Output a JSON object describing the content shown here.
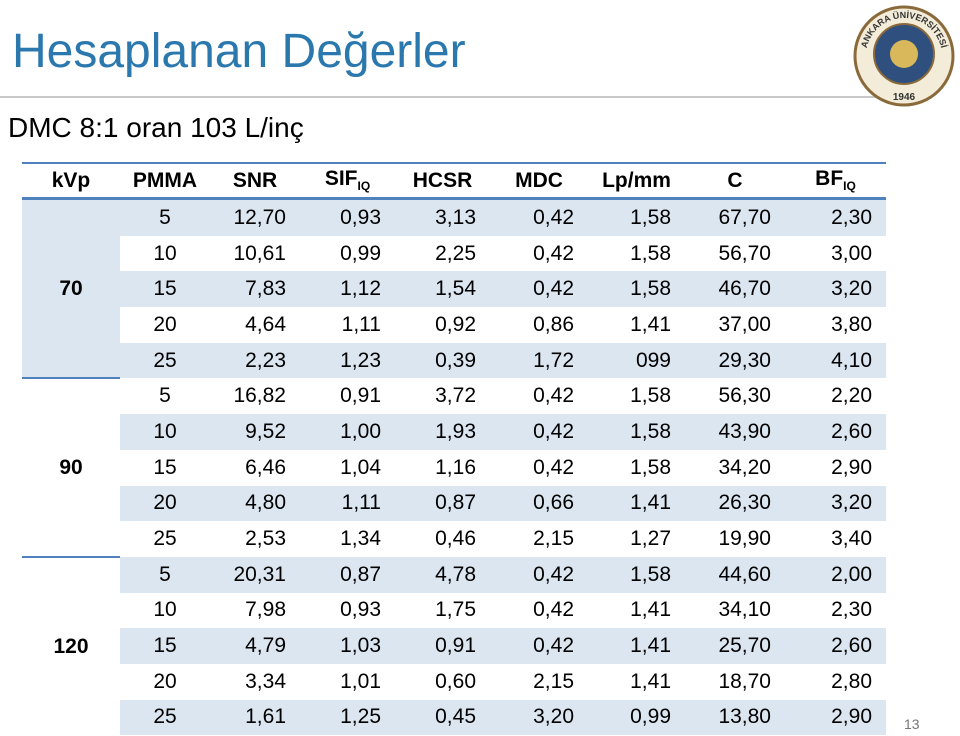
{
  "header": {
    "title": "Hesaplanan Değerler",
    "subtitle": "DMC 8:1 oran 103 L/inç"
  },
  "logo": {
    "name": "ANKARA ÜNİVERSİTESİ",
    "year": "1946"
  },
  "table": {
    "columns": [
      {
        "text": "kVp"
      },
      {
        "text": "PMMA"
      },
      {
        "text": "SNR"
      },
      {
        "text": "SIF",
        "sub": "IQ"
      },
      {
        "text": "HCSR"
      },
      {
        "text": "MDC"
      },
      {
        "text": "Lp/mm"
      },
      {
        "text": "C"
      },
      {
        "text": "BF",
        "sub": "IQ"
      }
    ],
    "groups": [
      {
        "kvp": "70",
        "rows": [
          [
            "5",
            "12,70",
            "0,93",
            "3,13",
            "0,42",
            "1,58",
            "67,70",
            "2,30"
          ],
          [
            "10",
            "10,61",
            "0,99",
            "2,25",
            "0,42",
            "1,58",
            "56,70",
            "3,00"
          ],
          [
            "15",
            "7,83",
            "1,12",
            "1,54",
            "0,42",
            "1,58",
            "46,70",
            "3,20"
          ],
          [
            "20",
            "4,64",
            "1,11",
            "0,92",
            "0,86",
            "1,41",
            "37,00",
            "3,80"
          ],
          [
            "25",
            "2,23",
            "1,23",
            "0,39",
            "1,72",
            "099",
            "29,30",
            "4,10"
          ]
        ]
      },
      {
        "kvp": "90",
        "rows": [
          [
            "5",
            "16,82",
            "0,91",
            "3,72",
            "0,42",
            "1,58",
            "56,30",
            "2,20"
          ],
          [
            "10",
            "9,52",
            "1,00",
            "1,93",
            "0,42",
            "1,58",
            "43,90",
            "2,60"
          ],
          [
            "15",
            "6,46",
            "1,04",
            "1,16",
            "0,42",
            "1,58",
            "34,20",
            "2,90"
          ],
          [
            "20",
            "4,80",
            "1,11",
            "0,87",
            "0,66",
            "1,41",
            "26,30",
            "3,20"
          ],
          [
            "25",
            "2,53",
            "1,34",
            "0,46",
            "2,15",
            "1,27",
            "19,90",
            "3,40"
          ]
        ]
      },
      {
        "kvp": "120",
        "rows": [
          [
            "5",
            "20,31",
            "0,87",
            "4,78",
            "0,42",
            "1,58",
            "44,60",
            "2,00"
          ],
          [
            "10",
            "7,98",
            "0,93",
            "1,75",
            "0,42",
            "1,41",
            "34,10",
            "2,30"
          ],
          [
            "15",
            "4,79",
            "1,03",
            "0,91",
            "0,42",
            "1,41",
            "25,70",
            "2,60"
          ],
          [
            "20",
            "3,34",
            "1,01",
            "0,60",
            "2,15",
            "1,41",
            "18,70",
            "2,80"
          ],
          [
            "25",
            "1,61",
            "1,25",
            "0,45",
            "3,20",
            "0,99",
            "13,80",
            "2,90"
          ]
        ]
      }
    ]
  },
  "page_number": "13"
}
